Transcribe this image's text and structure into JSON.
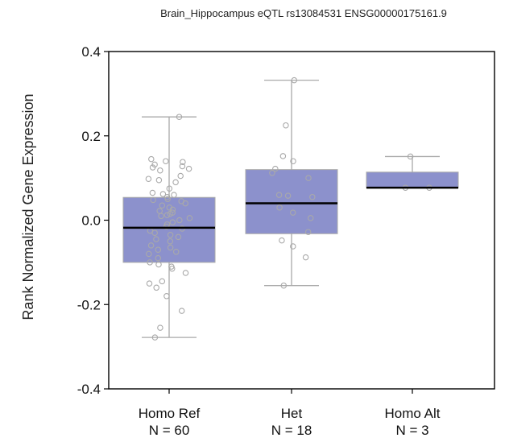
{
  "colors": {
    "box_fill": "#8c91cc",
    "box_stroke": "#a9a9a9",
    "whisker": "#a9a9a9",
    "median": "#000000",
    "point_stroke": "#a9a9a9",
    "axis": "#000000"
  },
  "chart_data": {
    "type": "box",
    "title": "Brain_Hippocampus eQTL rs13084531 ENSG00000175161.9",
    "xlabel": "",
    "ylabel": "Rank Normalized Gene Expression",
    "ylim": [
      -0.4,
      0.4
    ],
    "yticks": [
      "0.4",
      "0.2",
      "0.0",
      "-0.2",
      "-0.4"
    ],
    "ytick_values": [
      0.4,
      0.2,
      0.0,
      -0.2,
      -0.4
    ],
    "grid": false,
    "categories": [
      {
        "label": "Homo Ref",
        "n_label": "N = 60",
        "q1": -0.1,
        "median": -0.018,
        "q3": 0.054,
        "whisker_low": -0.278,
        "whisker_high": 0.245,
        "points": [
          0.245,
          0.145,
          0.14,
          0.138,
          0.132,
          0.128,
          0.125,
          0.122,
          0.118,
          0.105,
          0.098,
          0.095,
          0.09,
          0.075,
          0.065,
          0.062,
          0.06,
          0.055,
          0.05,
          0.048,
          0.045,
          0.04,
          0.035,
          0.03,
          0.025,
          0.022,
          0.018,
          0.015,
          0.012,
          0.01,
          0.005,
          0.0,
          -0.005,
          -0.01,
          -0.015,
          -0.02,
          -0.025,
          -0.03,
          -0.035,
          -0.04,
          -0.045,
          -0.05,
          -0.06,
          -0.065,
          -0.07,
          -0.075,
          -0.08,
          -0.09,
          -0.1,
          -0.105,
          -0.11,
          -0.115,
          -0.125,
          -0.145,
          -0.15,
          -0.16,
          -0.18,
          -0.215,
          -0.255,
          -0.278
        ]
      },
      {
        "label": "Het",
        "n_label": "N = 18",
        "q1": -0.032,
        "median": 0.04,
        "q3": 0.12,
        "whisker_low": -0.155,
        "whisker_high": 0.332,
        "points": [
          0.332,
          0.225,
          0.152,
          0.14,
          0.122,
          0.112,
          0.1,
          0.06,
          0.058,
          0.055,
          0.03,
          0.018,
          0.005,
          -0.028,
          -0.048,
          -0.062,
          -0.088,
          -0.155
        ]
      },
      {
        "label": "Homo Alt",
        "n_label": "N = 3",
        "q1": 0.077,
        "median": 0.077,
        "q3": 0.114,
        "whisker_low": 0.077,
        "whisker_high": 0.151,
        "points": [
          0.151,
          0.077,
          0.077
        ]
      }
    ]
  }
}
